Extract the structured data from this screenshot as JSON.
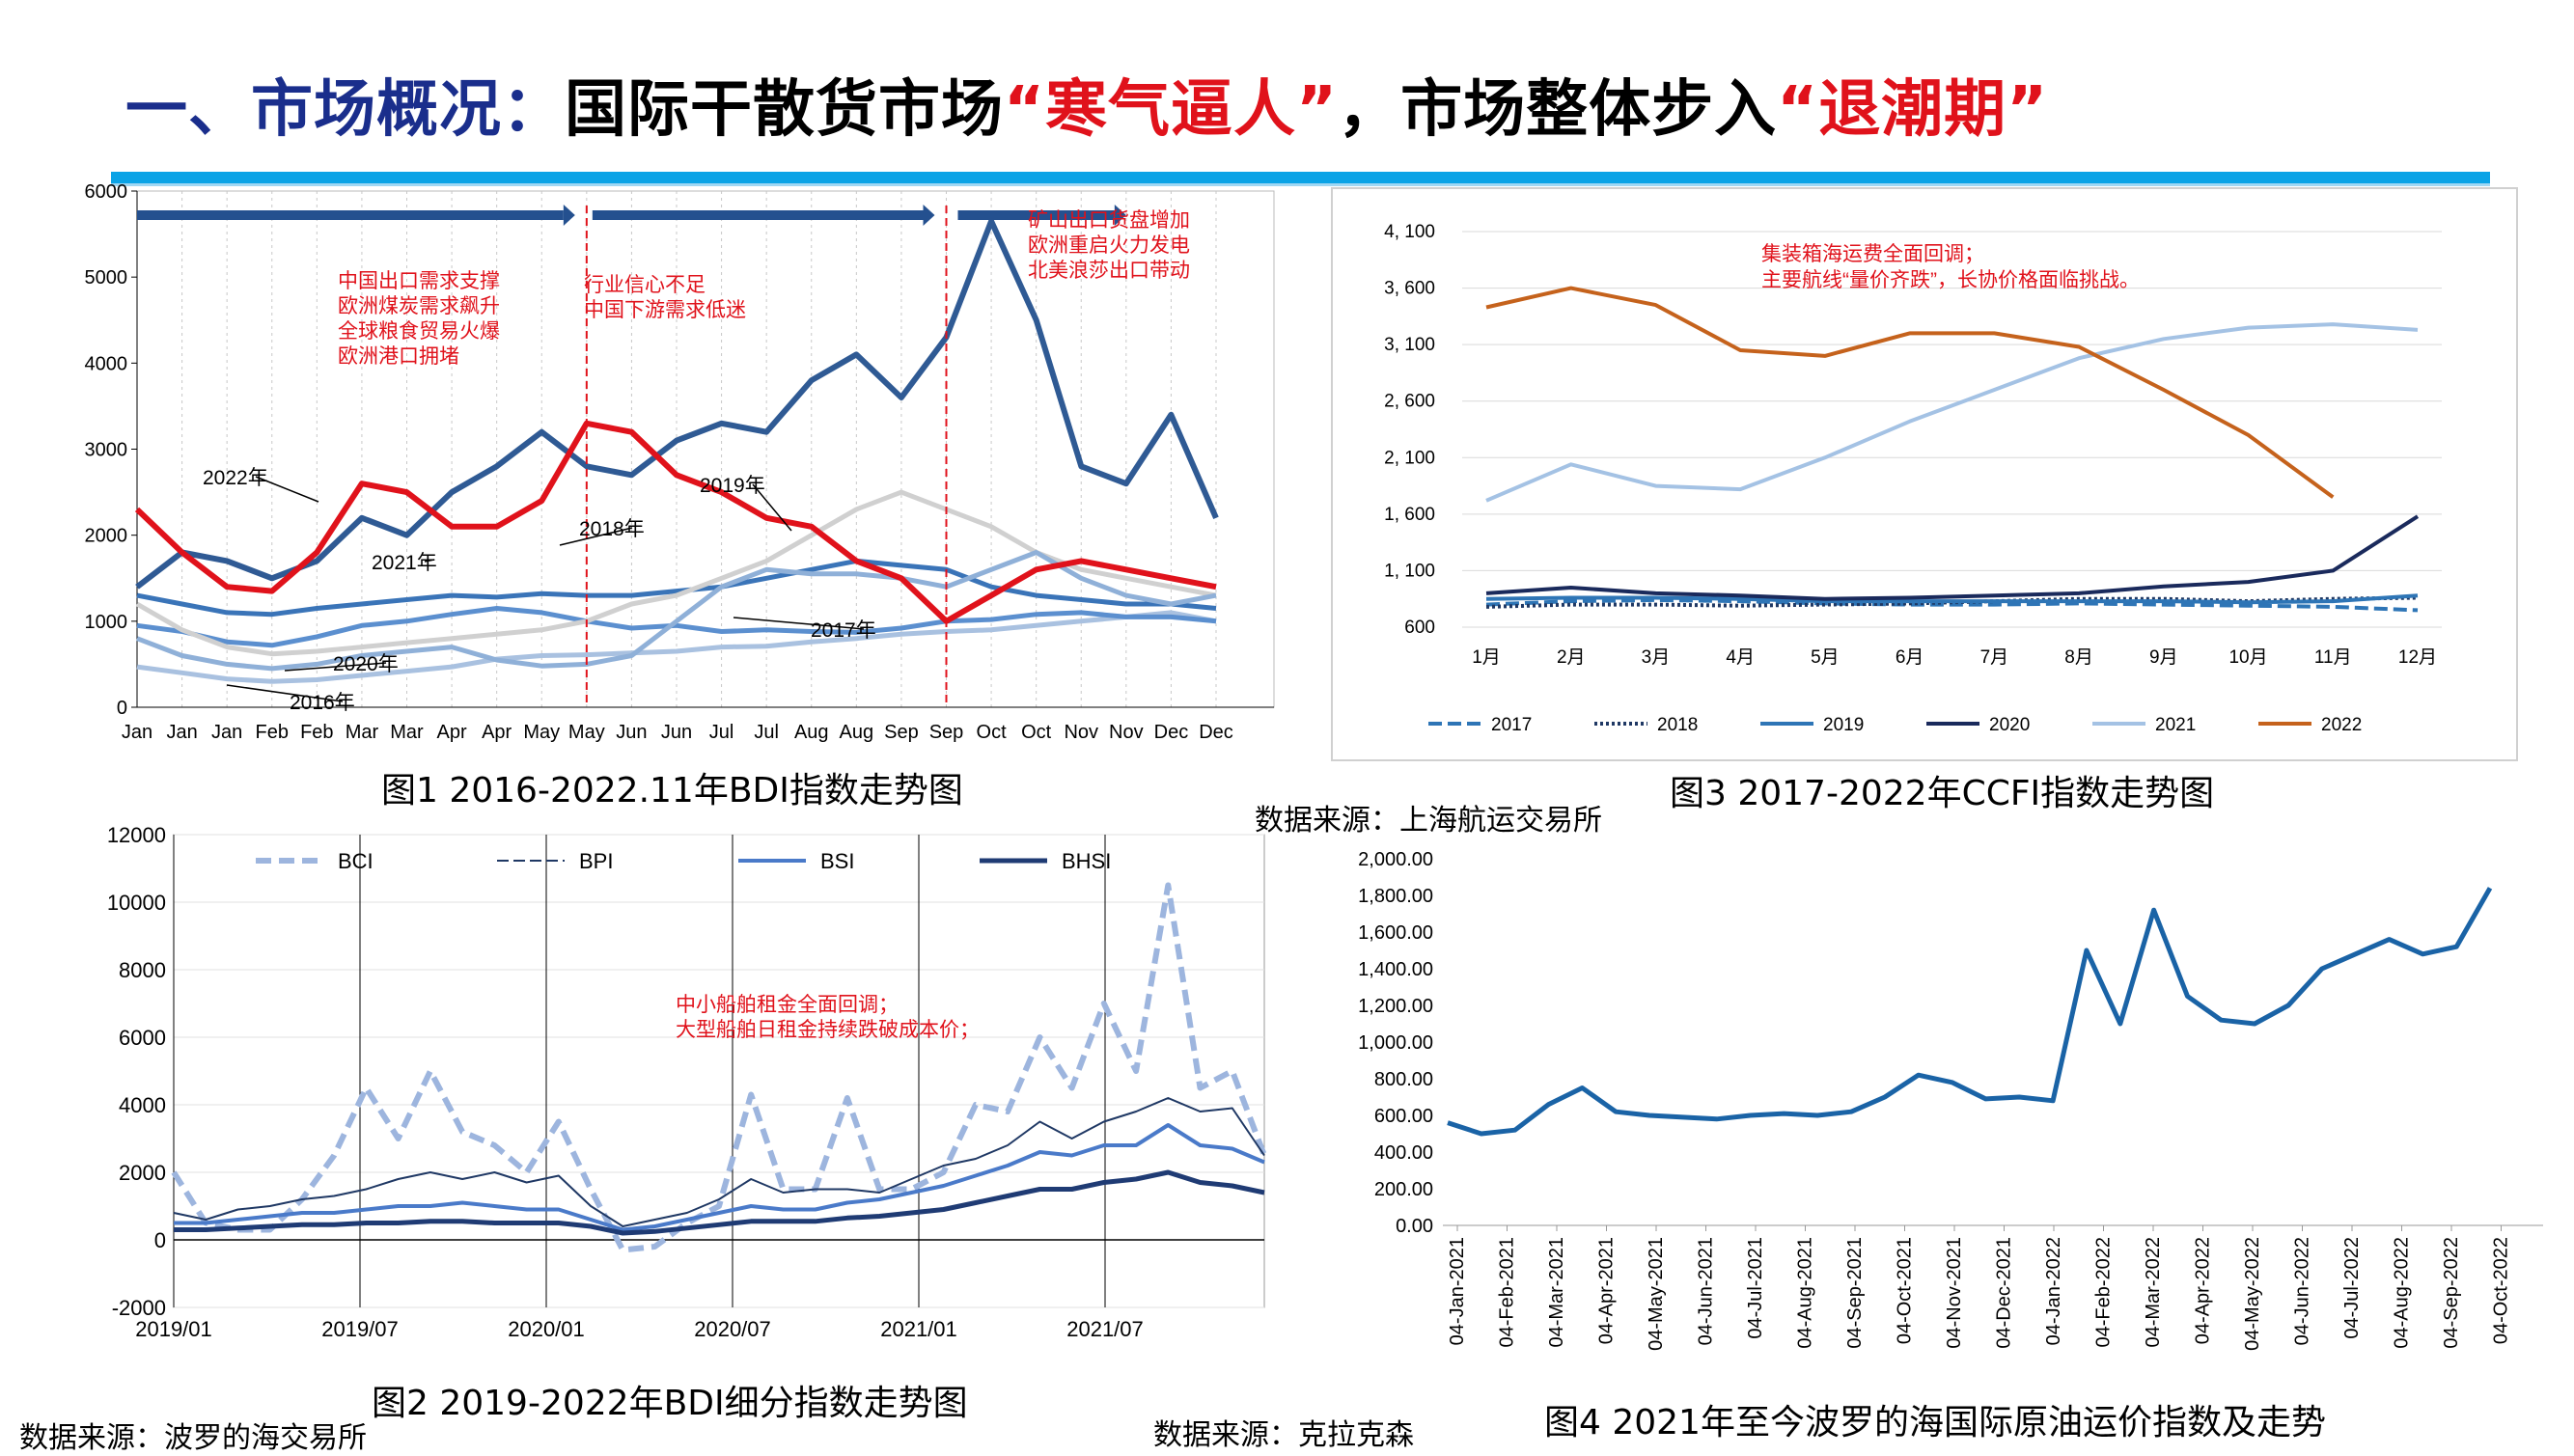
{
  "slide": {
    "title_part1": "一、市场概况：",
    "title_part2": "国际干散货市场",
    "title_part3": "“寒气逼人”",
    "title_part4": "，市场整体步入",
    "title_part5": "“退潮期”"
  },
  "captions": {
    "fig1": "图1 2016-2022.11年BDI指数走势图",
    "fig2": "图2 2019-2022年BDI细分指数走势图",
    "fig3": "图3 2017-2022年CCFI指数走势图",
    "fig4": "图4  2021年至今波罗的海国际原油运价指数及走势"
  },
  "sources": {
    "src_left": "数据来源：波罗的海交易所",
    "src_mid": "数据来源：克拉克森",
    "src_right": "数据来源：上海航运交易所"
  },
  "colors": {
    "title_blue": "#1a2e8c",
    "title_red": "#e0121b",
    "accent_bar": "#0aa3e6",
    "annotation_red": "#e0121b"
  },
  "chart_data": [
    {
      "id": "fig1",
      "type": "line",
      "title": "图1 2016-2022.11年BDI指数走势图",
      "categories": [
        "Jan",
        "Jan",
        "Jan",
        "Feb",
        "Feb",
        "Mar",
        "Mar",
        "Apr",
        "Apr",
        "May",
        "May",
        "Jun",
        "Jun",
        "Jul",
        "Jul",
        "Aug",
        "Aug",
        "Sep",
        "Sep",
        "Oct",
        "Oct",
        "Nov",
        "Nov",
        "Dec",
        "Dec"
      ],
      "ylim": [
        0,
        6000
      ],
      "yticks": [
        0,
        1000,
        2000,
        3000,
        4000,
        5000,
        6000
      ],
      "series": [
        {
          "name": "2016年",
          "values": [
            470,
            400,
            330,
            300,
            320,
            370,
            420,
            470,
            560,
            600,
            610,
            630,
            650,
            700,
            710,
            760,
            800,
            850,
            880,
            900,
            950,
            1000,
            1050,
            1100,
            1000
          ]
        },
        {
          "name": "2017年",
          "values": [
            950,
            880,
            760,
            720,
            820,
            950,
            1000,
            1080,
            1150,
            1100,
            1000,
            920,
            950,
            880,
            900,
            880,
            870,
            920,
            1000,
            1020,
            1080,
            1100,
            1050,
            1050,
            1000
          ]
        },
        {
          "name": "2018年",
          "values": [
            1300,
            1200,
            1100,
            1080,
            1150,
            1200,
            1250,
            1300,
            1280,
            1320,
            1300,
            1300,
            1350,
            1400,
            1500,
            1600,
            1700,
            1650,
            1600,
            1400,
            1300,
            1250,
            1200,
            1200,
            1150
          ]
        },
        {
          "name": "2019年",
          "values": [
            1200,
            900,
            700,
            620,
            650,
            700,
            750,
            800,
            850,
            900,
            1000,
            1200,
            1300,
            1500,
            1700,
            2000,
            2300,
            2500,
            2300,
            2100,
            1800,
            1600,
            1500,
            1400,
            1300
          ]
        },
        {
          "name": "2020年",
          "values": [
            800,
            600,
            500,
            450,
            500,
            600,
            650,
            700,
            550,
            480,
            500,
            600,
            1000,
            1400,
            1600,
            1550,
            1550,
            1500,
            1400,
            1600,
            1800,
            1500,
            1300,
            1200,
            1300
          ]
        },
        {
          "name": "2021年",
          "values": [
            1400,
            1800,
            1700,
            1500,
            1700,
            2200,
            2000,
            2500,
            2800,
            3200,
            2800,
            2700,
            3100,
            3300,
            3200,
            3800,
            4100,
            3600,
            4300,
            5650,
            4500,
            2800,
            2600,
            3400,
            2200
          ]
        },
        {
          "name": "2022年",
          "values": [
            2300,
            1800,
            1400,
            1350,
            1800,
            2600,
            2500,
            2100,
            2100,
            2400,
            3300,
            3200,
            2700,
            2500,
            2200,
            2100,
            1700,
            1500,
            1000,
            1300,
            1600,
            1700,
            1600,
            1500,
            1400
          ]
        }
      ],
      "series_labels": [
        "2016年",
        "2017年",
        "2018年",
        "2019年",
        "2020年",
        "2021年",
        "2022年"
      ],
      "annotations": [
        "中国出口需求支撑",
        "欧洲煤炭需求飙升",
        "全球粮食贸易火爆",
        "欧洲港口拥堵",
        "行业信心不足",
        "中国下游需求低迷",
        "矿山出口货盘增加",
        "欧洲重启火力发电",
        "北美浪莎出口带动"
      ]
    },
    {
      "id": "fig2",
      "type": "line",
      "title": "图2 2019-2022年BDI细分指数走势图",
      "xlabels": [
        "2019/01",
        "2019/07",
        "2020/01",
        "2020/07",
        "2021/01",
        "2021/07"
      ],
      "ylim": [
        -2000,
        12000
      ],
      "yticks": [
        -2000,
        0,
        2000,
        4000,
        6000,
        8000,
        10000,
        12000
      ],
      "legend": [
        "BCI",
        "BPI",
        "BSI",
        "BHSI"
      ],
      "series": [
        {
          "name": "BCI",
          "values": [
            2000,
            500,
            300,
            300,
            1200,
            2500,
            4500,
            3000,
            5000,
            3200,
            2800,
            2000,
            3500,
            1500,
            -300,
            -200,
            500,
            1000,
            4300,
            1500,
            1500,
            4200,
            1500,
            1500,
            2000,
            4000,
            3800,
            6000,
            4500,
            7000,
            5000,
            10500,
            4500,
            5000,
            2500
          ]
        },
        {
          "name": "BPI",
          "values": [
            800,
            600,
            900,
            1000,
            1200,
            1300,
            1500,
            1800,
            2000,
            1800,
            2000,
            1700,
            1900,
            1000,
            400,
            600,
            800,
            1200,
            1800,
            1400,
            1500,
            1500,
            1400,
            1800,
            2200,
            2400,
            2800,
            3500,
            3000,
            3500,
            3800,
            4200,
            3800,
            3900,
            2500
          ]
        },
        {
          "name": "BSI",
          "values": [
            500,
            500,
            600,
            700,
            800,
            800,
            900,
            1000,
            1000,
            1100,
            1000,
            900,
            900,
            600,
            300,
            400,
            600,
            800,
            1000,
            900,
            900,
            1100,
            1200,
            1400,
            1600,
            1900,
            2200,
            2600,
            2500,
            2800,
            2800,
            3400,
            2800,
            2700,
            2300
          ]
        },
        {
          "name": "BHSI",
          "values": [
            300,
            300,
            350,
            400,
            450,
            450,
            500,
            500,
            550,
            550,
            500,
            500,
            500,
            400,
            200,
            250,
            350,
            450,
            550,
            550,
            550,
            650,
            700,
            800,
            900,
            1100,
            1300,
            1500,
            1500,
            1700,
            1800,
            2000,
            1700,
            1600,
            1400
          ]
        }
      ],
      "annotations": [
        "中小船舶租金全面回调；",
        "大型船舶日租金持续跌破成本价；"
      ]
    },
    {
      "id": "fig3",
      "type": "line",
      "title": "图3 2017-2022年CCFI指数走势图",
      "categories": [
        "1月",
        "2月",
        "3月",
        "4月",
        "5月",
        "6月",
        "7月",
        "8月",
        "9月",
        "10月",
        "11月",
        "12月"
      ],
      "ylim": [
        600,
        4100
      ],
      "ytick_labels": [
        "600",
        "1, 100",
        "1, 600",
        "2, 100",
        "2, 600",
        "3, 100",
        "3, 600",
        "4, 100"
      ],
      "yticks": [
        600,
        1100,
        1600,
        2100,
        2600,
        3100,
        3600,
        4100
      ],
      "legend": [
        "2017",
        "2018",
        "2019",
        "2020",
        "2021",
        "2022"
      ],
      "series": [
        {
          "name": "2017",
          "values": [
            800,
            830,
            840,
            830,
            810,
            800,
            800,
            810,
            800,
            790,
            780,
            750
          ]
        },
        {
          "name": "2018",
          "values": [
            780,
            800,
            800,
            790,
            800,
            810,
            830,
            850,
            850,
            830,
            850,
            860
          ]
        },
        {
          "name": "2019",
          "values": [
            850,
            860,
            860,
            850,
            830,
            830,
            830,
            830,
            830,
            820,
            830,
            880
          ]
        },
        {
          "name": "2020",
          "values": [
            900,
            950,
            900,
            880,
            850,
            860,
            880,
            900,
            960,
            1000,
            1100,
            1580
          ]
        },
        {
          "name": "2021",
          "values": [
            1720,
            2040,
            1850,
            1820,
            2100,
            2420,
            2700,
            2980,
            3150,
            3250,
            3280,
            3230
          ]
        },
        {
          "name": "2022",
          "values": [
            3430,
            3600,
            3450,
            3050,
            3000,
            3200,
            3200,
            3080,
            2700,
            2300,
            1750,
            null
          ]
        }
      ],
      "annotations": [
        "集装箱海运费全面回调；",
        "主要航线“量价齐跌”，长协价格面临挑战。"
      ]
    },
    {
      "id": "fig4",
      "type": "line",
      "title": "图4  2021年至今波罗的海国际原油运价指数及走势",
      "xlabels": [
        "04-Jan-2021",
        "04-Feb-2021",
        "04-Mar-2021",
        "04-Apr-2021",
        "04-May-2021",
        "04-Jun-2021",
        "04-Jul-2021",
        "04-Aug-2021",
        "04-Sep-2021",
        "04-Oct-2021",
        "04-Nov-2021",
        "04-Dec-2021",
        "04-Jan-2022",
        "04-Feb-2022",
        "04-Mar-2022",
        "04-Apr-2022",
        "04-May-2022",
        "04-Jun-2022",
        "04-Jul-2022",
        "04-Aug-2022",
        "04-Sep-2022",
        "04-Oct-2022"
      ],
      "ylim": [
        0,
        2000
      ],
      "ytick_labels": [
        "0.00",
        "200.00",
        "400.00",
        "600.00",
        "800.00",
        "1,000.00",
        "1,200.00",
        "1,400.00",
        "1,600.00",
        "1,800.00",
        "2,000.00"
      ],
      "yticks": [
        0,
        200,
        400,
        600,
        800,
        1000,
        1200,
        1400,
        1600,
        1800,
        2000
      ],
      "series": [
        {
          "name": "波罗的海国际原油运价指数",
          "values": [
            560,
            500,
            520,
            660,
            750,
            620,
            600,
            590,
            580,
            600,
            610,
            600,
            620,
            700,
            820,
            780,
            690,
            700,
            680,
            1500,
            1100,
            1720,
            1250,
            1120,
            1100,
            1200,
            1400,
            1480,
            1560,
            1480,
            1520,
            1840
          ]
        }
      ]
    }
  ]
}
